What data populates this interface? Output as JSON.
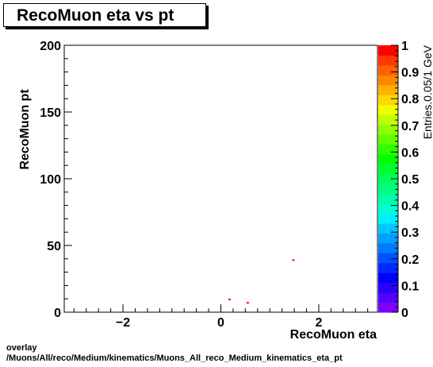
{
  "chart_data": {
    "type": "heatmap",
    "title": "RecoMuon eta vs pt",
    "xlabel": "RecoMuon eta",
    "ylabel": "RecoMuon pt",
    "zlabel": "Entries.0.05/1 GeV",
    "xlim": [
      -3.2,
      3.2
    ],
    "ylim": [
      0,
      200
    ],
    "zlim": [
      0,
      1
    ],
    "x_ticks": [
      {
        "value": -2,
        "label": "−2"
      },
      {
        "value": 0,
        "label": "0"
      },
      {
        "value": 2,
        "label": "2"
      }
    ],
    "y_ticks": [
      {
        "value": 0,
        "label": "0"
      },
      {
        "value": 50,
        "label": "50"
      },
      {
        "value": 100,
        "label": "100"
      },
      {
        "value": 150,
        "label": "150"
      },
      {
        "value": 200,
        "label": "200"
      }
    ],
    "z_ticks": [
      {
        "value": 0,
        "label": "0"
      },
      {
        "value": 0.1,
        "label": "0.1"
      },
      {
        "value": 0.2,
        "label": "0.2"
      },
      {
        "value": 0.3,
        "label": "0.3"
      },
      {
        "value": 0.4,
        "label": "0.4"
      },
      {
        "value": 0.5,
        "label": "0.5"
      },
      {
        "value": 0.6,
        "label": "0.6"
      },
      {
        "value": 0.7,
        "label": "0.7"
      },
      {
        "value": 0.8,
        "label": "0.8"
      },
      {
        "value": 0.9,
        "label": "0.9"
      },
      {
        "value": 1,
        "label": "1"
      }
    ],
    "points": [
      {
        "x": 0.18,
        "y": 9.5,
        "z": 1
      },
      {
        "x": 0.55,
        "y": 7,
        "z": 1
      },
      {
        "x": 1.48,
        "y": 39,
        "z": 1
      }
    ],
    "palette": [
      "#7f00ff",
      "#5500ff",
      "#2a00ff",
      "#0000ff",
      "#0028ff",
      "#0050ff",
      "#0078ff",
      "#00a0ff",
      "#00c8ff",
      "#00f0ff",
      "#00ffd0",
      "#00ffa8",
      "#00ff80",
      "#00ff58",
      "#00ff30",
      "#00ff00",
      "#30ff00",
      "#60ff00",
      "#90ff00",
      "#c0ff00",
      "#f0ff00",
      "#ffd800",
      "#ffb000",
      "#ff8800",
      "#ff6000",
      "#ff3800",
      "#ff0000"
    ],
    "grid": false,
    "legend": "colorbar-right"
  },
  "caption": {
    "line1": "overlay",
    "line2": "/Muons/All/reco/Medium/kinematics/Muons_All_reco_Medium_kinematics_eta_pt"
  }
}
